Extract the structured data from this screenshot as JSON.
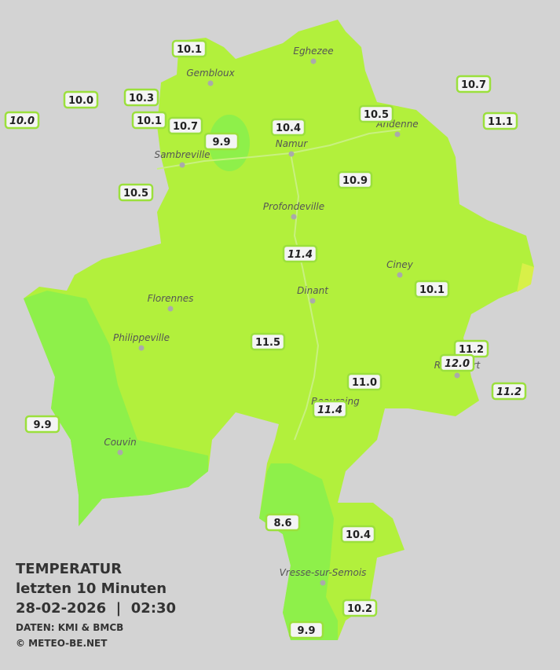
{
  "legend": {
    "title": "TEMPERATUR",
    "subtitle": "letzten 10 Minuten",
    "datetime": "28-02-2026  |  02:30",
    "source": "DATEN: KMI & BMCB",
    "copyright": "© METEO-BE.NET"
  },
  "cities": [
    "Eghezee",
    "Gembloux",
    "Andenne",
    "Namur",
    "Sambreville",
    "Profondeville",
    "Ciney",
    "Dinant",
    "Florennes",
    "Philippeville",
    "Rochefort",
    "Beauraing",
    "Couvin",
    "Vresse-sur-Semois"
  ],
  "stations": [
    "10.1",
    "10.0",
    "10.0",
    "10.3",
    "10.1",
    "10.7",
    "9.9",
    "10.4",
    "10.5",
    "10.7",
    "11.1",
    "10.5",
    "10.9",
    "11.4",
    "10.1",
    "11.5",
    "11.2",
    "12.0",
    "11.2",
    "11.0",
    "11.4",
    "9.9",
    "8.6",
    "10.4",
    "10.2",
    "9.9"
  ]
}
